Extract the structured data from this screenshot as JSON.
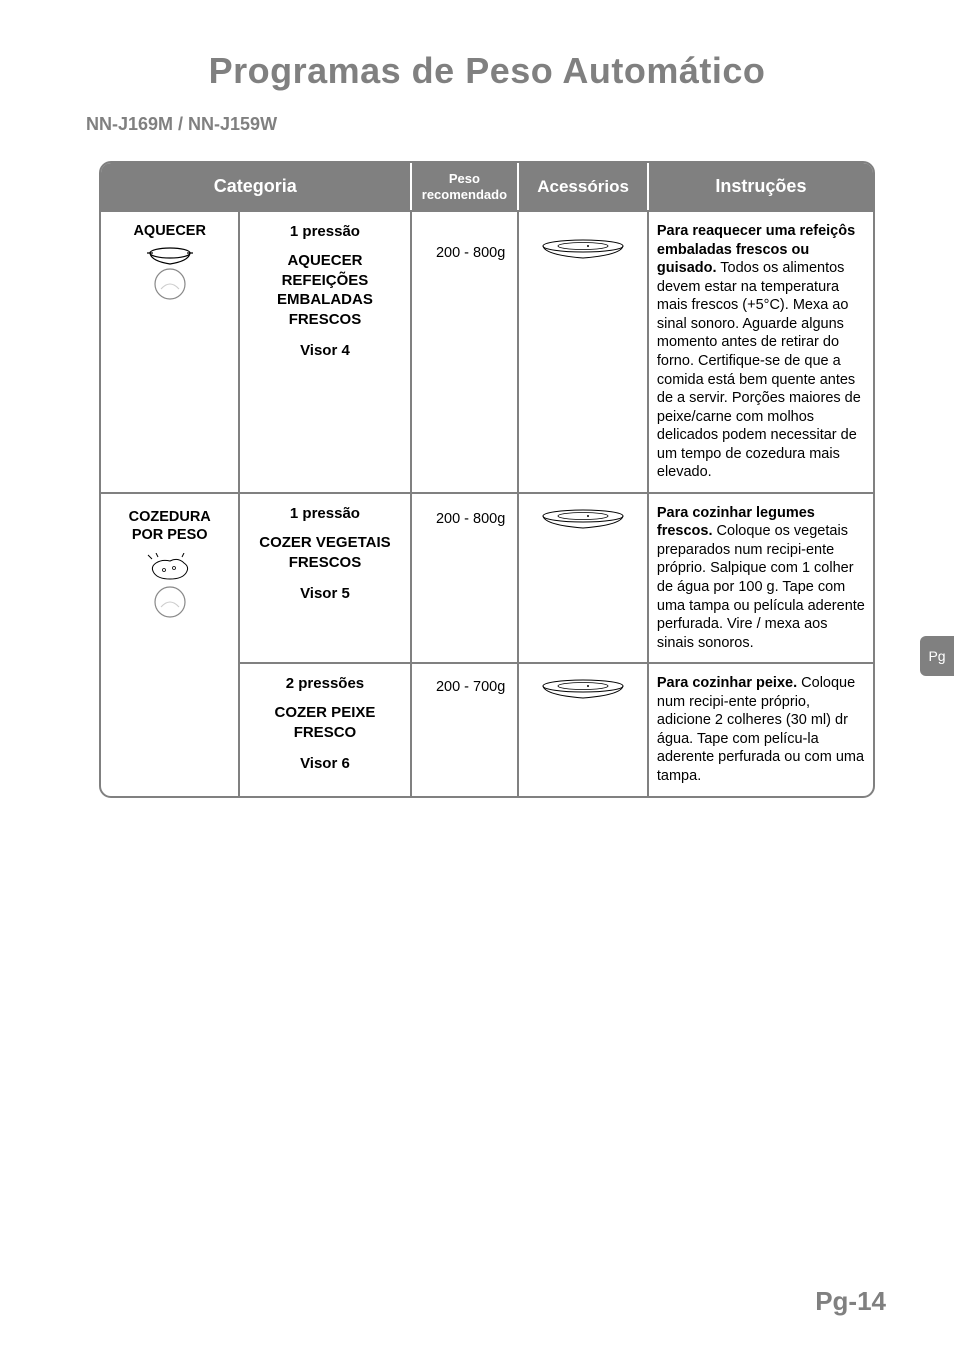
{
  "title": "Programas de Peso Automático",
  "model": "NN-J169M / NN-J159W",
  "side_tab": "Pg",
  "page_number": "Pg-14",
  "headers": {
    "categoria": "Categoria",
    "peso_line1": "Peso",
    "peso_line2": "recomendado",
    "acessorios": "Acessórios",
    "instrucoes": "Instruções"
  },
  "rows": {
    "aquecer": {
      "cat_name": "AQUECER",
      "press": "1 pressão",
      "prog_name": "AQUECER\nREFEIÇÕES\nEMBALADAS\nFRESCOS",
      "visor": "Visor 4",
      "weight": "200 - 800g",
      "instr_bold": "Para reaquecer uma refeiçôs embaladas frescos ou guisado.",
      "instr_text": "Todos os alimentos devem estar na temperatura mais frescos (+5°C). Mexa ao sinal sonoro. Aguarde alguns momento antes de retirar do forno. Certifique-se de que a comida está bem quente antes de a servir. Porções maiores de peixe/carne com molhos delicados podem necessitar de um tempo de cozedura mais elevado."
    },
    "cozedura": {
      "cat_name": "COZEDURA\nPOR PESO",
      "press": "1 pressão",
      "prog_name": "COZER VEGETAIS\nFRESCOS",
      "visor": "Visor 5",
      "weight": "200 - 800g",
      "instr_bold": "Para cozinhar legumes frescos.",
      "instr_text": "Coloque os vegetais preparados num recipi-ente próprio. Salpique com 1 colher de água por 100 g. Tape com uma tampa ou película aderente perfurada. Vire / mexa aos sinais sonoros."
    },
    "peixe": {
      "press": "2 pressões",
      "prog_name": "COZER PEIXE\nFRESCO",
      "visor": "Visor 6",
      "weight": "200 - 700g",
      "instr_bold": "Para cozinhar peixe.",
      "instr_text": "Coloque num recipi-ente próprio, adicione 2 colheres (30 ml) dr água. Tape com pelícu-la aderente perfurada ou com uma tampa."
    }
  }
}
